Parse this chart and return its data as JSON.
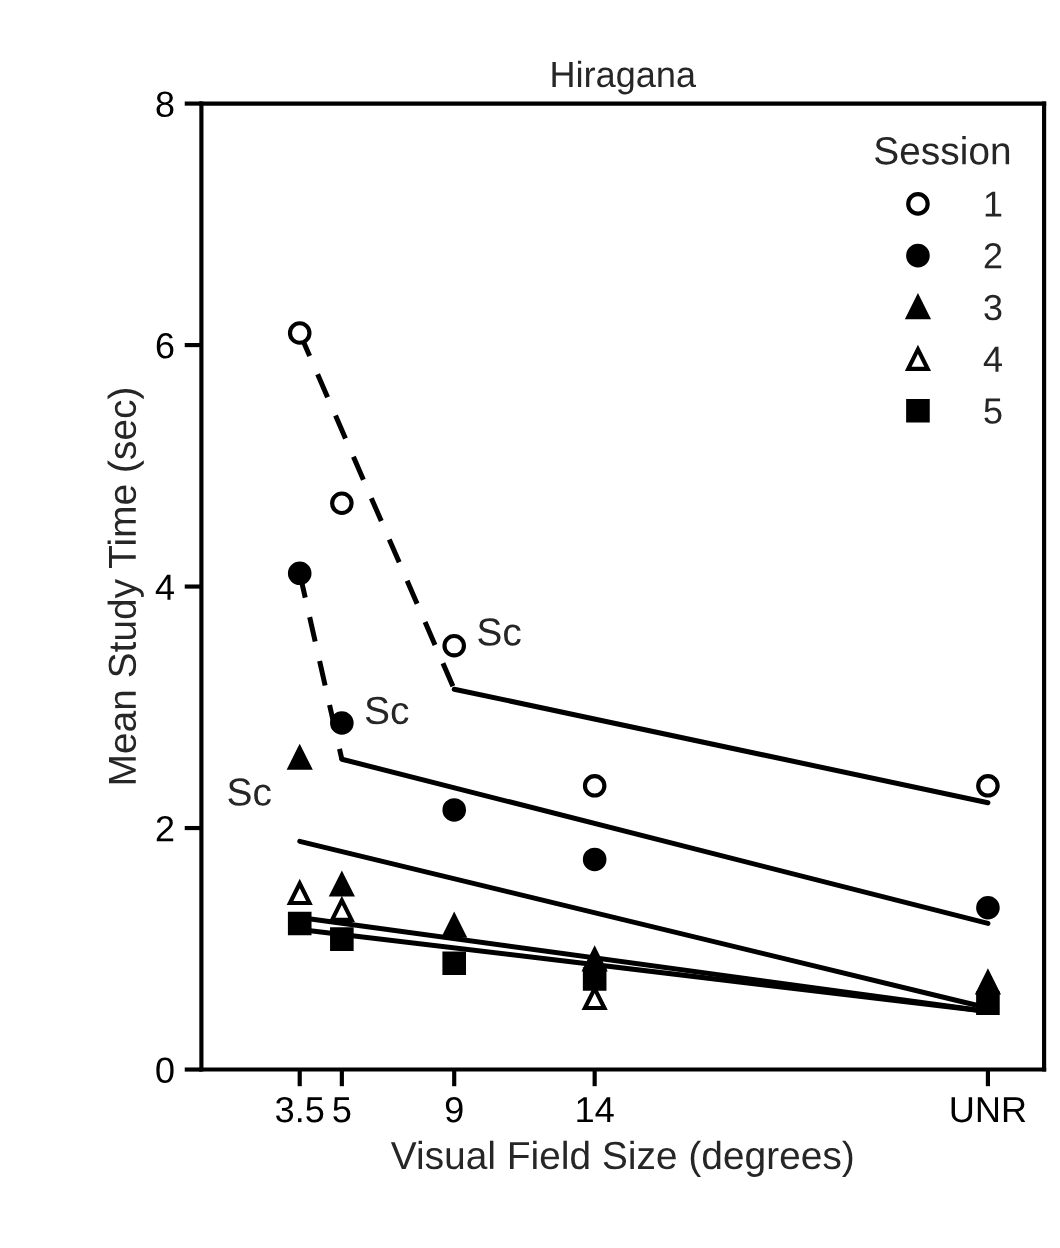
{
  "chart_data": {
    "type": "scatter",
    "title": "Hiragana",
    "xlabel": "Visual Field Size (degrees)",
    "ylabel": "Mean Study Time (sec)",
    "legend_title": "Session",
    "legend": "top right",
    "grid": false,
    "xlim": [
      0,
      30
    ],
    "xticks": [
      3.5,
      5,
      9,
      14,
      {
        "value": 28,
        "label": "UNR"
      }
    ],
    "ylim": [
      0,
      8
    ],
    "yticks": [
      0,
      2,
      4,
      6,
      8
    ],
    "series": [
      {
        "name": "1",
        "color": "#ffffff",
        "marker": "circle",
        "x": [
          3.5,
          5,
          9,
          14,
          28
        ],
        "values": [
          6.1,
          4.69,
          3.51,
          2.35,
          2.35
        ]
      },
      {
        "name": "2",
        "color": "#000000",
        "marker": "circle",
        "x": [
          3.5,
          5,
          9,
          14,
          28
        ],
        "values": [
          4.11,
          2.87,
          2.15,
          1.74,
          1.34
        ]
      },
      {
        "name": "3",
        "color": "#000000",
        "marker": "triangle",
        "x": [
          3.5,
          5,
          9,
          14,
          28
        ],
        "values": [
          2.58,
          1.53,
          1.19,
          0.91,
          0.72
        ]
      },
      {
        "name": "4",
        "color": "#ffffff",
        "marker": "triangle",
        "x": [
          3.5,
          5,
          14
        ],
        "values": [
          1.46,
          1.32,
          0.59
        ]
      },
      {
        "name": "5",
        "color": "#000000",
        "marker": "square",
        "x": [
          3.5,
          5,
          9,
          14,
          28
        ],
        "values": [
          1.21,
          1.08,
          0.88,
          0.75,
          0.55
        ]
      },
      {
        "type": "line",
        "color": "#000000",
        "line_style": "dashed",
        "x": [
          3.5,
          9
        ],
        "values": [
          6.1,
          3.15
        ]
      },
      {
        "type": "line",
        "color": "#000000",
        "x": [
          9,
          28
        ],
        "values": [
          3.15,
          2.21
        ]
      },
      {
        "type": "line",
        "color": "#000000",
        "line_style": "dashed",
        "x": [
          3.5,
          5
        ],
        "values": [
          4.11,
          2.57
        ]
      },
      {
        "type": "line",
        "color": "#000000",
        "x": [
          5,
          28
        ],
        "values": [
          2.57,
          1.21
        ]
      },
      {
        "type": "line",
        "color": "#000000",
        "x": [
          3.5,
          28
        ],
        "values": [
          1.89,
          0.51
        ]
      },
      {
        "type": "line",
        "color": "#000000",
        "x": [
          3.5,
          28
        ],
        "values": [
          1.26,
          0.48
        ]
      },
      {
        "type": "line",
        "color": "#000000",
        "x": [
          3.5,
          28
        ],
        "values": [
          1.16,
          0.48
        ]
      }
    ],
    "annotations": [
      {
        "text": "Sc",
        "x": 9,
        "y": 3.4
      },
      {
        "text": "Sc",
        "x": 5,
        "y": 2.75
      },
      {
        "text": "Sc",
        "x": 3.5,
        "y": 1.89
      }
    ]
  }
}
